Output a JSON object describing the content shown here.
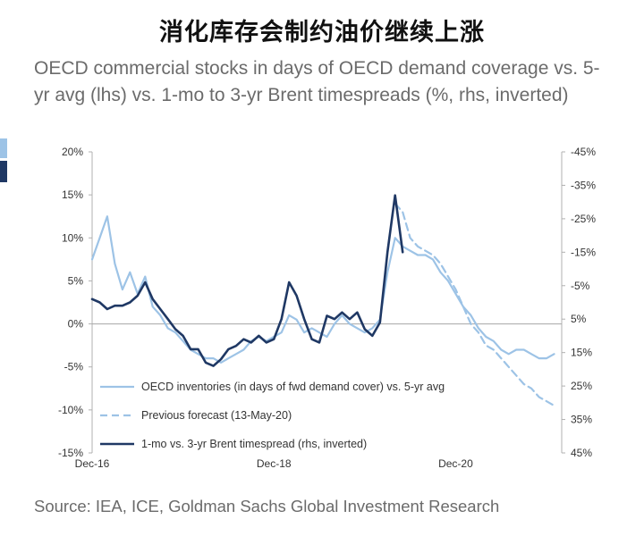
{
  "headline": "消化库存会制约油价继续上涨",
  "subtitle": "OECD commercial stocks in days of OECD demand coverage vs. 5-yr avg (lhs) vs. 1-mo to 3-yr Brent timespreads (%, rhs, inverted)",
  "source": "Source: IEA, ICE, Goldman Sachs Global Investment Research",
  "colors": {
    "inventories": "#9dc3e6",
    "forecast": "#9dc3e6",
    "timespread": "#1f3864",
    "axis": "#b0b0b0",
    "zero_line": "#a6a6a6"
  },
  "chart_data": {
    "type": "line",
    "xlabel": "",
    "ylabel": "",
    "x_ticks": [
      "Dec-16",
      "Dec-18",
      "Dec-20"
    ],
    "x_range": [
      "2016-12",
      "2022-02"
    ],
    "ylim_left": [
      -15,
      20
    ],
    "y_ticks_left": [
      "-15%",
      "-10%",
      "-5%",
      "0%",
      "5%",
      "10%",
      "15%",
      "20%"
    ],
    "ylim_right_inverted": [
      45,
      -45
    ],
    "y_ticks_right": [
      "45%",
      "35%",
      "25%",
      "15%",
      "5%",
      "-5%",
      "-15%",
      "-25%",
      "-35%",
      "-45%"
    ],
    "grid": false,
    "legend_position": "bottom-left",
    "series": [
      {
        "name": "OECD inventories (in days of fwd demand cover) vs. 5-yr avg",
        "axis": "left",
        "style": "solid",
        "x": [
          "2016-12",
          "2017-01",
          "2017-02",
          "2017-03",
          "2017-04",
          "2017-05",
          "2017-06",
          "2017-07",
          "2017-08",
          "2017-09",
          "2017-10",
          "2017-11",
          "2017-12",
          "2018-01",
          "2018-02",
          "2018-03",
          "2018-04",
          "2018-05",
          "2018-06",
          "2018-07",
          "2018-08",
          "2018-09",
          "2018-10",
          "2018-11",
          "2018-12",
          "2019-01",
          "2019-02",
          "2019-03",
          "2019-04",
          "2019-05",
          "2019-06",
          "2019-07",
          "2019-08",
          "2019-09",
          "2019-10",
          "2019-11",
          "2019-12",
          "2020-01",
          "2020-02",
          "2020-03",
          "2020-04",
          "2020-05",
          "2020-06",
          "2020-07",
          "2020-08",
          "2020-09",
          "2020-10",
          "2020-11",
          "2020-12",
          "2021-01",
          "2021-02",
          "2021-03",
          "2021-04",
          "2021-05",
          "2021-06",
          "2021-07",
          "2021-08",
          "2021-09",
          "2021-10",
          "2021-11",
          "2021-12",
          "2022-01"
        ],
        "values": [
          7.5,
          10,
          12.5,
          7,
          4,
          6,
          3.5,
          5.5,
          2,
          1,
          -0.5,
          -1,
          -2,
          -3,
          -3.5,
          -4,
          -4,
          -4.5,
          -4,
          -3.5,
          -3,
          -2,
          -1.5,
          -2,
          -1.5,
          -1,
          1,
          0.5,
          -1,
          -0.5,
          -1,
          -1.5,
          0,
          1,
          0,
          -0.5,
          -1,
          -0.5,
          0.5,
          6,
          10,
          9,
          8.5,
          8,
          8,
          7.5,
          6,
          5,
          3.5,
          2,
          1,
          -0.5,
          -1.5,
          -2,
          -3,
          -3.5,
          -3,
          -3,
          -3.5,
          -4,
          -4,
          -3.5
        ]
      },
      {
        "name": "Previous forecast (13-May-20)",
        "axis": "left",
        "style": "dashed",
        "x": [
          "2020-04",
          "2020-05",
          "2020-06",
          "2020-07",
          "2020-08",
          "2020-09",
          "2020-10",
          "2020-11",
          "2020-12",
          "2021-01",
          "2021-02",
          "2021-03",
          "2021-04",
          "2021-05",
          "2021-06",
          "2021-07",
          "2021-08",
          "2021-09",
          "2021-10",
          "2021-11",
          "2021-12",
          "2022-01"
        ],
        "values": [
          14,
          13,
          10,
          9,
          8.5,
          8,
          7,
          5.5,
          4,
          2,
          0,
          -1,
          -2.5,
          -3,
          -4,
          -5,
          -6,
          -7,
          -7.5,
          -8.5,
          -9,
          -9.5
        ]
      },
      {
        "name": "1-mo vs. 3-yr Brent timespread (rhs, inverted)",
        "axis": "right",
        "style": "solid",
        "x": [
          "2016-12",
          "2017-01",
          "2017-02",
          "2017-03",
          "2017-04",
          "2017-05",
          "2017-06",
          "2017-07",
          "2017-08",
          "2017-09",
          "2017-10",
          "2017-11",
          "2017-12",
          "2018-01",
          "2018-02",
          "2018-03",
          "2018-04",
          "2018-05",
          "2018-06",
          "2018-07",
          "2018-08",
          "2018-09",
          "2018-10",
          "2018-11",
          "2018-12",
          "2019-01",
          "2019-02",
          "2019-03",
          "2019-04",
          "2019-05",
          "2019-06",
          "2019-07",
          "2019-08",
          "2019-09",
          "2019-10",
          "2019-11",
          "2019-12",
          "2020-01",
          "2020-02",
          "2020-03",
          "2020-04",
          "2020-05"
        ],
        "values": [
          -1,
          0,
          2,
          1,
          1,
          0,
          -2,
          -6,
          -1,
          2,
          5,
          8,
          10,
          14,
          14,
          18,
          19,
          17,
          14,
          13,
          11,
          12,
          10,
          12,
          11,
          5,
          -6,
          -2,
          5,
          11,
          12,
          4,
          5,
          3,
          5,
          3,
          8,
          10,
          6,
          -15,
          -32,
          -15
        ]
      }
    ]
  }
}
